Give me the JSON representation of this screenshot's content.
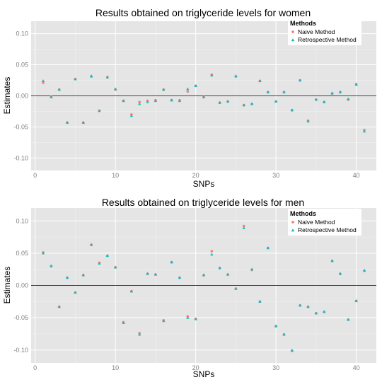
{
  "chart_data": [
    {
      "type": "scatter",
      "title": "Results obtained on triglyceride levels for women",
      "xlabel": "SNPs",
      "ylabel": "Estimates",
      "xlim": [
        -0.5,
        42.5
      ],
      "ylim": [
        -0.12,
        0.12
      ],
      "xticks": [
        "0",
        "10",
        "20",
        "30",
        "40"
      ],
      "yticks": [
        "-0.10",
        "-0.05",
        "0.00",
        "0.05",
        "0.10"
      ],
      "hline": 0,
      "grid": true,
      "legend": {
        "title": "Methods",
        "position": "top-right",
        "entries": [
          "Naive Method",
          "Retrospective Method"
        ]
      },
      "series": [
        {
          "name": "Naive Method",
          "color": "#F8766D",
          "marker": "circle",
          "x": [
            1,
            2,
            3,
            4,
            5,
            6,
            7,
            8,
            9,
            10,
            11,
            12,
            13,
            14,
            15,
            16,
            17,
            18,
            19,
            20,
            21,
            22,
            23,
            24,
            25,
            26,
            27,
            28,
            29,
            30,
            31,
            32,
            33,
            34,
            35,
            36,
            37,
            38,
            39,
            40,
            41
          ],
          "values": [
            0.021,
            -0.001,
            0.01,
            -0.043,
            0.027,
            -0.043,
            0.031,
            -0.024,
            0.03,
            0.01,
            -0.008,
            -0.03,
            -0.01,
            -0.008,
            -0.007,
            0.01,
            -0.007,
            -0.007,
            0.007,
            0.016,
            -0.002,
            0.034,
            -0.011,
            -0.009,
            0.031,
            -0.015,
            -0.013,
            0.024,
            0.006,
            -0.009,
            0.006,
            -0.023,
            0.025,
            -0.04,
            -0.006,
            -0.01,
            0.004,
            0.006,
            -0.006,
            0.019,
            -0.055
          ]
        },
        {
          "name": "Retrospective Method",
          "color": "#00BFC4",
          "marker": "triangle",
          "x": [
            1,
            2,
            3,
            4,
            5,
            6,
            7,
            8,
            9,
            10,
            11,
            12,
            13,
            14,
            15,
            16,
            17,
            18,
            19,
            20,
            21,
            22,
            23,
            24,
            25,
            26,
            27,
            28,
            29,
            30,
            31,
            32,
            33,
            34,
            35,
            36,
            37,
            38,
            39,
            40,
            41
          ],
          "values": [
            0.024,
            -0.002,
            0.01,
            -0.043,
            0.027,
            -0.043,
            0.032,
            -0.024,
            0.03,
            0.011,
            -0.008,
            -0.032,
            -0.013,
            -0.01,
            -0.008,
            0.01,
            -0.007,
            -0.008,
            0.011,
            0.016,
            -0.002,
            0.033,
            -0.011,
            -0.009,
            0.032,
            -0.015,
            -0.013,
            0.024,
            0.006,
            -0.009,
            0.006,
            -0.023,
            0.025,
            -0.041,
            -0.006,
            -0.01,
            0.004,
            0.006,
            -0.005,
            0.018,
            -0.057
          ]
        }
      ]
    },
    {
      "type": "scatter",
      "title": "Results obtained on triglyceride levels for men",
      "xlabel": "SNPs",
      "ylabel": "Estimates",
      "xlim": [
        -0.5,
        42.5
      ],
      "ylim": [
        -0.12,
        0.12
      ],
      "xticks": [
        "0",
        "10",
        "20",
        "30",
        "40"
      ],
      "yticks": [
        "-0.10",
        "-0.05",
        "0.00",
        "0.05",
        "0.10"
      ],
      "hline": 0,
      "grid": true,
      "legend": {
        "title": "Methods",
        "position": "top-right",
        "entries": [
          "Naive Method",
          "Retrospective Method"
        ]
      },
      "series": [
        {
          "name": "Naive Method",
          "color": "#F8766D",
          "marker": "circle",
          "x": [
            1,
            2,
            3,
            4,
            5,
            6,
            7,
            8,
            9,
            10,
            11,
            12,
            13,
            14,
            15,
            16,
            17,
            18,
            19,
            20,
            21,
            22,
            23,
            24,
            25,
            26,
            27,
            28,
            29,
            30,
            31,
            32,
            33,
            34,
            35,
            36,
            37,
            38,
            39,
            40,
            41
          ],
          "values": [
            0.051,
            0.03,
            -0.033,
            0.012,
            -0.011,
            0.016,
            0.063,
            0.035,
            0.046,
            0.028,
            -0.057,
            -0.009,
            -0.074,
            0.018,
            0.017,
            -0.054,
            0.036,
            0.012,
            -0.048,
            -0.052,
            0.016,
            0.053,
            0.027,
            0.017,
            -0.005,
            0.092,
            0.024,
            -0.025,
            0.058,
            -0.063,
            -0.076,
            -0.101,
            -0.031,
            -0.033,
            -0.043,
            -0.041,
            0.038,
            0.018,
            -0.053,
            -0.024,
            0.023
          ]
        },
        {
          "name": "Retrospective Method",
          "color": "#00BFC4",
          "marker": "triangle",
          "x": [
            1,
            2,
            3,
            4,
            5,
            6,
            7,
            8,
            9,
            10,
            11,
            12,
            13,
            14,
            15,
            16,
            17,
            18,
            19,
            20,
            21,
            22,
            23,
            24,
            25,
            26,
            27,
            28,
            29,
            30,
            31,
            32,
            33,
            34,
            35,
            36,
            37,
            38,
            39,
            40,
            41
          ],
          "values": [
            0.05,
            0.03,
            -0.033,
            0.012,
            -0.011,
            0.016,
            0.063,
            0.034,
            0.046,
            0.028,
            -0.058,
            -0.009,
            -0.076,
            0.018,
            0.017,
            -0.055,
            0.036,
            0.012,
            -0.05,
            -0.052,
            0.016,
            0.048,
            0.027,
            0.017,
            -0.005,
            0.089,
            0.025,
            -0.025,
            0.058,
            -0.063,
            -0.076,
            -0.101,
            -0.031,
            -0.033,
            -0.043,
            -0.041,
            0.038,
            0.018,
            -0.053,
            -0.024,
            0.023
          ]
        }
      ]
    }
  ]
}
